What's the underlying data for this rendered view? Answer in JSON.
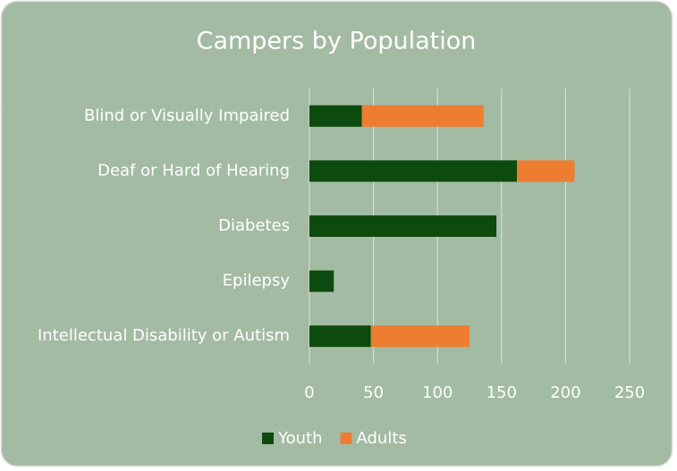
{
  "chart_data": {
    "type": "bar",
    "orientation": "horizontal",
    "stacked": true,
    "title": "Campers by Population",
    "categories": [
      "Blind or Visually Impaired",
      "Deaf or Hard of Hearing",
      "Diabetes",
      "Epilepsy",
      "Intellectual Disability or Autism"
    ],
    "series": [
      {
        "name": "Youth",
        "color": "#0d4a0d",
        "values": [
          41,
          162,
          146,
          19,
          48
        ]
      },
      {
        "name": "Adults",
        "color": "#ed7d31",
        "values": [
          95,
          45,
          0,
          0,
          77
        ]
      }
    ],
    "xlim": [
      0,
      250
    ],
    "xticks": [
      0,
      50,
      100,
      150,
      200,
      250
    ],
    "grid": true,
    "legend": "bottom"
  }
}
